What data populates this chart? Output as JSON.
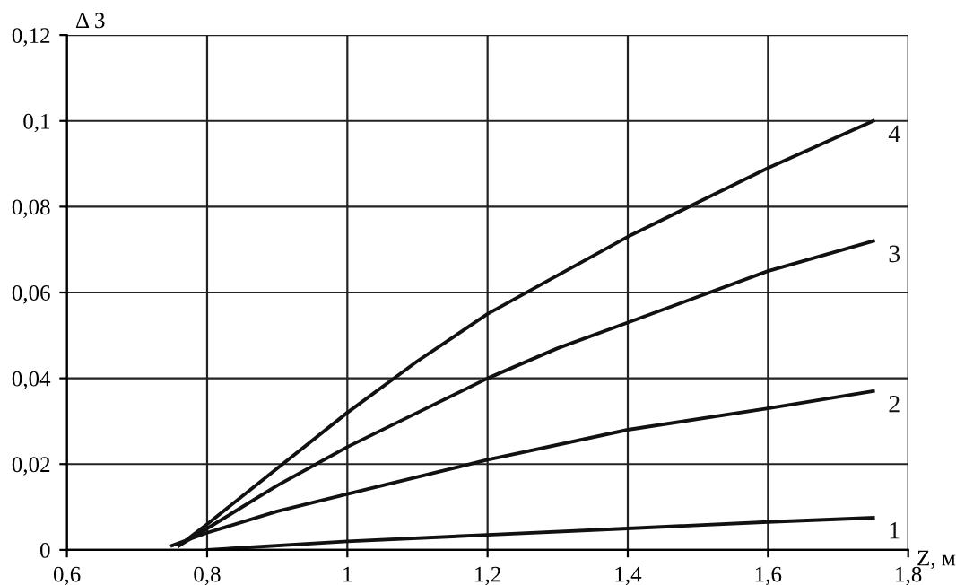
{
  "chart_data": {
    "type": "line",
    "xlabel": "Z, м",
    "ylabel": "Δ 3",
    "xlim": [
      0.6,
      1.8
    ],
    "ylim": [
      0,
      0.12
    ],
    "xticks": [
      {
        "value": 0.6,
        "label": "0,6"
      },
      {
        "value": 0.8,
        "label": "0,8"
      },
      {
        "value": 1,
        "label": "1"
      },
      {
        "value": 1.2,
        "label": "1,2"
      },
      {
        "value": 1.4,
        "label": "1,4"
      },
      {
        "value": 1.6,
        "label": "1,6"
      },
      {
        "value": 1.8,
        "label": "1,8"
      }
    ],
    "yticks": [
      0,
      {
        "value": 0.02,
        "label": "0,02"
      },
      {
        "value": 0.04,
        "label": "0,04"
      },
      {
        "value": 0.06,
        "label": "0,06"
      },
      {
        "value": 0.08,
        "label": "0,08"
      },
      {
        "value": 0.1,
        "label": "0,1"
      },
      {
        "value": 0.12,
        "label": "0,12"
      }
    ],
    "grid": true,
    "marker": "none",
    "line_style": "solid",
    "series": [
      {
        "name": "1",
        "color": "#111111",
        "x": [
          0.8,
          1.0,
          1.2,
          1.4,
          1.6,
          1.75
        ],
        "values": [
          0,
          0.002,
          0.0035,
          0.005,
          0.0065,
          0.0075
        ]
      },
      {
        "name": "2",
        "color": "#111111",
        "x": [
          0.75,
          0.8,
          0.9,
          1.0,
          1.2,
          1.4,
          1.6,
          1.75
        ],
        "values": [
          0.001,
          0.004,
          0.009,
          0.013,
          0.021,
          0.028,
          0.033,
          0.037
        ]
      },
      {
        "name": "3",
        "color": "#111111",
        "x": [
          0.76,
          0.8,
          0.9,
          1.0,
          1.1,
          1.2,
          1.3,
          1.4,
          1.5,
          1.6,
          1.75
        ],
        "values": [
          0.001,
          0.005,
          0.015,
          0.024,
          0.032,
          0.04,
          0.047,
          0.053,
          0.059,
          0.065,
          0.072
        ]
      },
      {
        "name": "4",
        "color": "#111111",
        "x": [
          0.76,
          0.8,
          0.9,
          1.0,
          1.1,
          1.2,
          1.3,
          1.4,
          1.5,
          1.6,
          1.75
        ],
        "values": [
          0.001,
          0.006,
          0.019,
          0.032,
          0.044,
          0.055,
          0.064,
          0.073,
          0.081,
          0.089,
          0.1
        ]
      }
    ]
  }
}
